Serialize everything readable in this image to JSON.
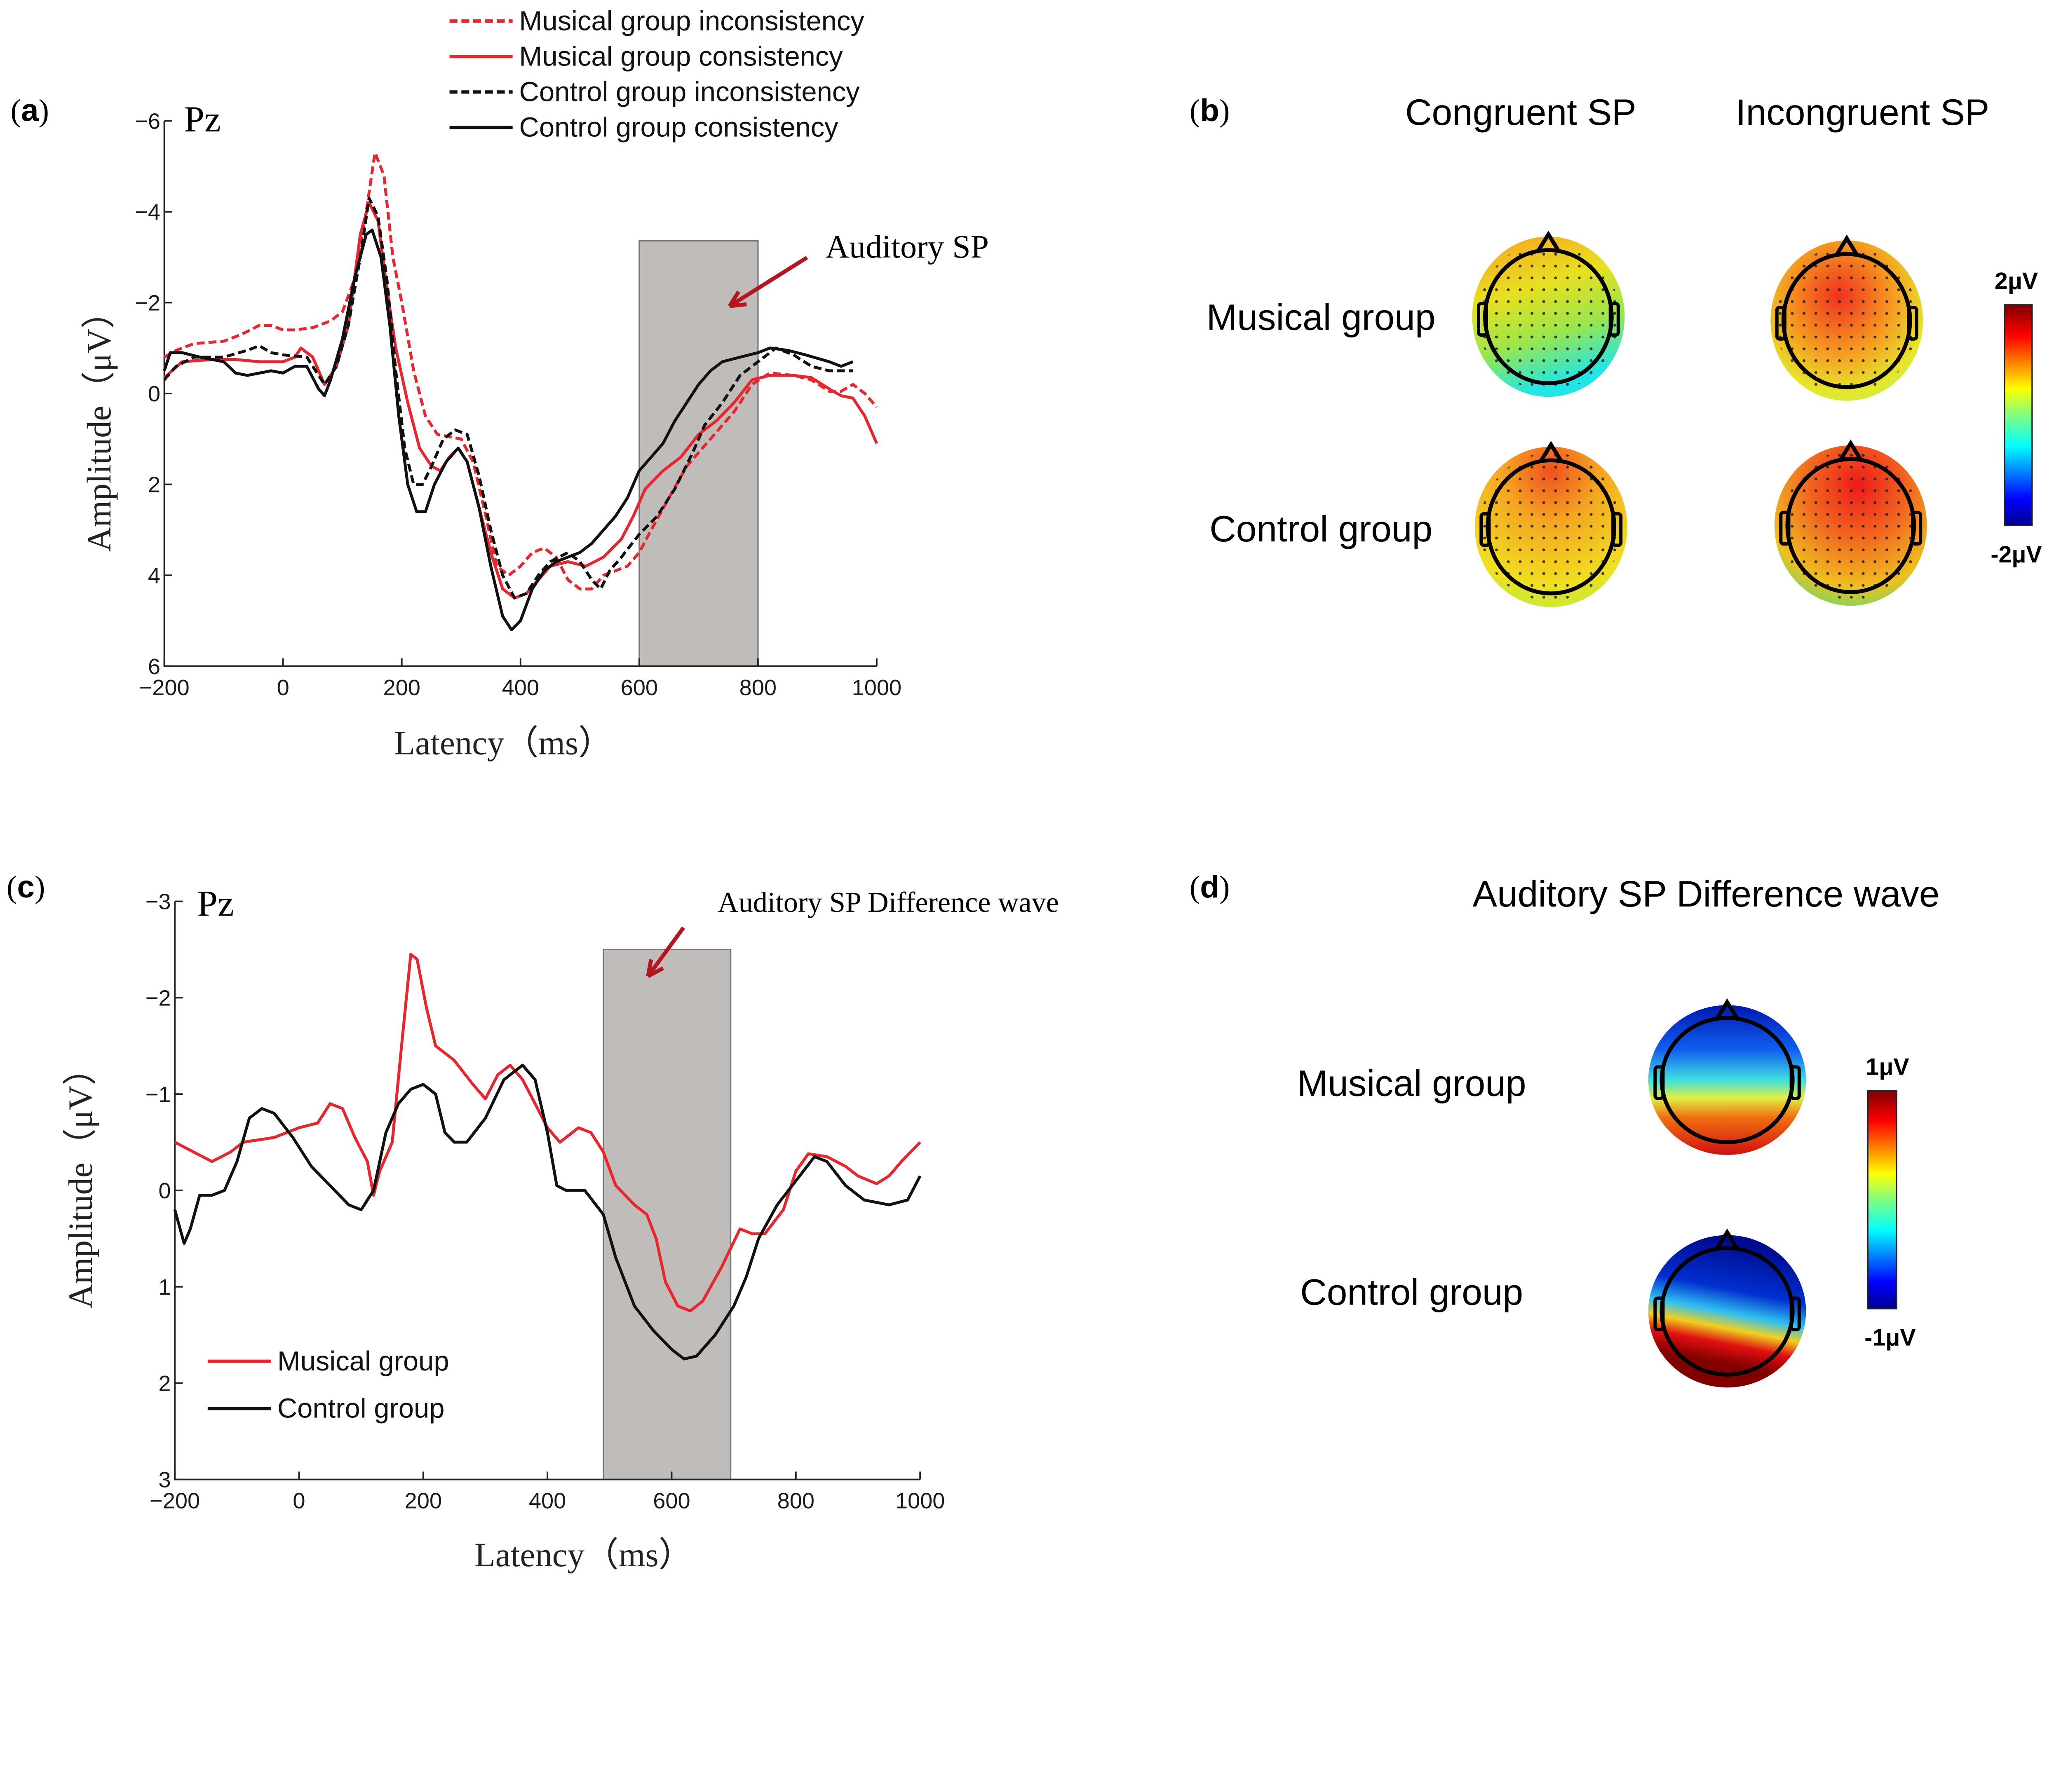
{
  "panels": {
    "a": {
      "label": "a"
    },
    "b": {
      "label": "b"
    },
    "c": {
      "label": "c"
    },
    "d": {
      "label": "d"
    }
  },
  "chart_data": [
    {
      "panel": "a",
      "type": "line",
      "title": "Pz",
      "xlabel": "Latency（ms）",
      "ylabel": "Amplitude（μV）",
      "xlim": [
        -200,
        1000
      ],
      "ylim": [
        -6,
        6
      ],
      "y_inverted": true,
      "xticks": [
        -200,
        0,
        200,
        400,
        600,
        800,
        1000
      ],
      "yticks": [
        -6,
        -4,
        -2,
        0,
        2,
        4,
        6
      ],
      "xtick_labels": [
        "−200",
        "0",
        "200",
        "400",
        "600",
        "800",
        "1000"
      ],
      "ytick_labels": [
        "−6",
        "−4",
        "−2",
        "0",
        "2",
        "4",
        "6"
      ],
      "grid": false,
      "legend_position": "top-right",
      "highlight_window": {
        "x": [
          600,
          800
        ],
        "color": "#bfbcb9"
      },
      "annotation": {
        "text": "Auditory SP",
        "arrow_color": "#b3161c"
      },
      "series": [
        {
          "name": "Musical group inconsistency",
          "color": "#e8262d",
          "dash": "dashed",
          "x": [
            -200,
            -180,
            -150,
            -100,
            -70,
            -40,
            -20,
            0,
            20,
            50,
            80,
            100,
            120,
            140,
            155,
            170,
            185,
            200,
            220,
            240,
            260,
            280,
            300,
            320,
            340,
            360,
            380,
            400,
            420,
            440,
            460,
            480,
            500,
            520,
            540,
            560,
            580,
            600,
            620,
            650,
            680,
            720,
            760,
            790,
            820,
            860,
            890,
            920,
            940,
            960,
            980,
            1000
          ],
          "y": [
            -0.8,
            -0.95,
            -1.1,
            -1.15,
            -1.3,
            -1.5,
            -1.5,
            -1.4,
            -1.4,
            -1.45,
            -1.6,
            -1.8,
            -2.5,
            -4.0,
            -5.3,
            -4.8,
            -3.0,
            -2.0,
            -0.5,
            0.5,
            0.9,
            0.95,
            1.0,
            1.5,
            2.6,
            3.8,
            4.0,
            3.8,
            3.5,
            3.4,
            3.6,
            4.1,
            4.3,
            4.3,
            4.0,
            3.9,
            3.8,
            3.5,
            3.0,
            2.3,
            1.6,
            1.0,
            0.4,
            -0.2,
            -0.45,
            -0.4,
            -0.3,
            -0.05,
            -0.05,
            -0.2,
            0.0,
            0.3
          ]
        },
        {
          "name": "Musical group consistency",
          "color": "#e8262d",
          "dash": "solid",
          "x": [
            -200,
            -170,
            -120,
            -80,
            -40,
            0,
            20,
            30,
            50,
            70,
            90,
            110,
            130,
            145,
            160,
            175,
            190,
            210,
            230,
            250,
            265,
            280,
            295,
            310,
            330,
            350,
            370,
            390,
            410,
            430,
            450,
            480,
            510,
            540,
            570,
            590,
            610,
            640,
            670,
            700,
            730,
            760,
            790,
            820,
            860,
            890,
            920,
            940,
            960,
            980,
            1000
          ],
          "y": [
            -0.35,
            -0.7,
            -0.75,
            -0.75,
            -0.7,
            -0.7,
            -0.8,
            -1.0,
            -0.8,
            -0.2,
            -0.6,
            -1.5,
            -3.5,
            -4.2,
            -3.8,
            -2.3,
            -1.0,
            0.2,
            1.2,
            1.6,
            1.7,
            1.4,
            1.2,
            1.5,
            2.5,
            3.5,
            4.3,
            4.5,
            4.4,
            4.1,
            3.8,
            3.7,
            3.8,
            3.6,
            3.2,
            2.7,
            2.1,
            1.7,
            1.4,
            0.9,
            0.6,
            0.2,
            -0.3,
            -0.4,
            -0.4,
            -0.35,
            -0.1,
            0.05,
            0.1,
            0.5,
            1.1
          ]
        },
        {
          "name": "Control group inconsistency",
          "color": "#111111",
          "dash": "dashed",
          "x": [
            -200,
            -180,
            -150,
            -100,
            -60,
            -40,
            -20,
            0,
            40,
            60,
            70,
            90,
            110,
            130,
            145,
            160,
            175,
            190,
            205,
            220,
            235,
            250,
            270,
            290,
            310,
            330,
            350,
            370,
            390,
            410,
            430,
            450,
            480,
            500,
            520,
            535,
            550,
            570,
            600,
            630,
            660,
            690,
            710,
            740,
            770,
            800,
            830,
            860,
            890,
            920,
            960
          ],
          "y": [
            -0.3,
            -0.6,
            -0.8,
            -0.8,
            -0.95,
            -1.05,
            -0.9,
            -0.85,
            -0.8,
            -0.4,
            -0.2,
            -0.6,
            -1.5,
            -3.0,
            -4.3,
            -3.9,
            -2.5,
            -0.5,
            1.2,
            2.0,
            2.0,
            1.6,
            1.0,
            0.8,
            0.9,
            1.8,
            3.0,
            4.0,
            4.5,
            4.4,
            4.0,
            3.7,
            3.5,
            3.7,
            4.1,
            4.3,
            3.9,
            3.6,
            3.1,
            2.7,
            2.1,
            1.3,
            0.7,
            0.2,
            -0.4,
            -0.7,
            -1.0,
            -0.85,
            -0.6,
            -0.5,
            -0.5
          ]
        },
        {
          "name": "Control group consistency",
          "color": "#111111",
          "dash": "solid",
          "x": [
            -200,
            -190,
            -170,
            -140,
            -100,
            -80,
            -60,
            -20,
            0,
            20,
            40,
            60,
            70,
            80,
            100,
            120,
            140,
            150,
            165,
            180,
            195,
            210,
            225,
            240,
            255,
            275,
            295,
            310,
            330,
            350,
            370,
            385,
            400,
            420,
            440,
            460,
            480,
            500,
            520,
            540,
            560,
            580,
            600,
            620,
            640,
            660,
            680,
            700,
            720,
            740,
            770,
            800,
            820,
            850,
            880,
            920,
            940,
            960
          ],
          "y": [
            -0.5,
            -0.9,
            -0.9,
            -0.8,
            -0.7,
            -0.45,
            -0.4,
            -0.5,
            -0.45,
            -0.6,
            -0.6,
            -0.1,
            0.05,
            -0.3,
            -1.2,
            -2.5,
            -3.5,
            -3.6,
            -3.0,
            -1.5,
            0.5,
            2.0,
            2.6,
            2.6,
            2.0,
            1.5,
            1.2,
            1.5,
            2.5,
            3.8,
            4.9,
            5.2,
            5.0,
            4.3,
            3.9,
            3.7,
            3.6,
            3.5,
            3.3,
            3.0,
            2.7,
            2.3,
            1.7,
            1.4,
            1.1,
            0.6,
            0.2,
            -0.2,
            -0.5,
            -0.7,
            -0.8,
            -0.9,
            -1.0,
            -0.95,
            -0.85,
            -0.7,
            -0.6,
            -0.7
          ]
        }
      ]
    },
    {
      "panel": "b",
      "type": "heatmap",
      "subtype": "scalp-topography",
      "columns": [
        "Congruent SP",
        "Incongruent SP"
      ],
      "rows": [
        "Musical group",
        "Control group"
      ],
      "colormap": "jet",
      "colorbar": {
        "max_label": "2μV",
        "min_label": "-2μV",
        "range": [
          -2,
          2
        ]
      }
    },
    {
      "panel": "c",
      "type": "line",
      "title": "Pz",
      "xlabel": "Latency（ms）",
      "ylabel": "Amplitude（μV）",
      "xlim": [
        -200,
        1000
      ],
      "ylim": [
        -3,
        3
      ],
      "y_inverted": true,
      "xticks": [
        -200,
        0,
        200,
        400,
        600,
        800,
        1000
      ],
      "yticks": [
        -3,
        -2,
        -1,
        0,
        1,
        2,
        3
      ],
      "xtick_labels": [
        "−200",
        "0",
        "200",
        "400",
        "600",
        "800",
        "1000"
      ],
      "ytick_labels": [
        "−3",
        "−2",
        "−1",
        "0",
        "1",
        "2",
        "3"
      ],
      "grid": false,
      "legend_position": "bottom-left",
      "highlight_window": {
        "x": [
          490,
          695
        ],
        "color": "#bfbcb9"
      },
      "annotation": {
        "text": "Auditory SP Difference wave",
        "arrow_color": "#b3161c"
      },
      "series": [
        {
          "name": "Musical group",
          "color": "#e8262d",
          "dash": "solid",
          "x": [
            -200,
            -170,
            -140,
            -110,
            -90,
            -40,
            0,
            30,
            50,
            70,
            90,
            110,
            120,
            130,
            150,
            165,
            180,
            190,
            205,
            220,
            250,
            280,
            300,
            320,
            340,
            360,
            380,
            400,
            420,
            450,
            470,
            490,
            510,
            540,
            560,
            575,
            590,
            610,
            630,
            650,
            680,
            710,
            730,
            750,
            780,
            800,
            820,
            850,
            880,
            900,
            930,
            950,
            970,
            1000
          ],
          "y": [
            -0.5,
            -0.4,
            -0.3,
            -0.4,
            -0.5,
            -0.55,
            -0.65,
            -0.7,
            -0.9,
            -0.85,
            -0.55,
            -0.3,
            0.05,
            -0.2,
            -0.5,
            -1.5,
            -2.45,
            -2.4,
            -1.9,
            -1.5,
            -1.35,
            -1.1,
            -0.95,
            -1.2,
            -1.3,
            -1.15,
            -0.9,
            -0.65,
            -0.5,
            -0.65,
            -0.6,
            -0.4,
            -0.05,
            0.15,
            0.25,
            0.5,
            0.95,
            1.2,
            1.25,
            1.15,
            0.8,
            0.4,
            0.45,
            0.45,
            0.2,
            -0.2,
            -0.38,
            -0.35,
            -0.25,
            -0.15,
            -0.07,
            -0.15,
            -0.3,
            -0.5
          ]
        },
        {
          "name": "Control group",
          "color": "#111111",
          "dash": "solid",
          "x": [
            -200,
            -185,
            -175,
            -160,
            -140,
            -120,
            -100,
            -80,
            -60,
            -40,
            -10,
            20,
            50,
            80,
            100,
            120,
            140,
            160,
            180,
            200,
            220,
            235,
            250,
            270,
            300,
            330,
            360,
            380,
            400,
            415,
            430,
            460,
            490,
            510,
            540,
            570,
            600,
            620,
            640,
            670,
            700,
            720,
            740,
            770,
            800,
            830,
            850,
            880,
            910,
            950,
            980,
            1000
          ],
          "y": [
            0.2,
            0.55,
            0.4,
            0.05,
            0.05,
            0.0,
            -0.3,
            -0.75,
            -0.85,
            -0.8,
            -0.55,
            -0.25,
            -0.05,
            0.15,
            0.2,
            0.0,
            -0.6,
            -0.9,
            -1.05,
            -1.1,
            -1.0,
            -0.6,
            -0.5,
            -0.5,
            -0.75,
            -1.15,
            -1.3,
            -1.15,
            -0.6,
            -0.05,
            0.0,
            0.0,
            0.25,
            0.7,
            1.2,
            1.45,
            1.65,
            1.75,
            1.72,
            1.5,
            1.2,
            0.9,
            0.5,
            0.15,
            -0.1,
            -0.35,
            -0.3,
            -0.05,
            0.1,
            0.15,
            0.1,
            -0.15
          ]
        }
      ]
    },
    {
      "panel": "d",
      "type": "heatmap",
      "subtype": "scalp-topography",
      "title": "Auditory SP Difference wave",
      "rows": [
        "Musical group",
        "Control group"
      ],
      "colormap": "jet",
      "colorbar": {
        "max_label": "1μV",
        "min_label": "-1μV",
        "range": [
          -1,
          1
        ]
      }
    }
  ]
}
